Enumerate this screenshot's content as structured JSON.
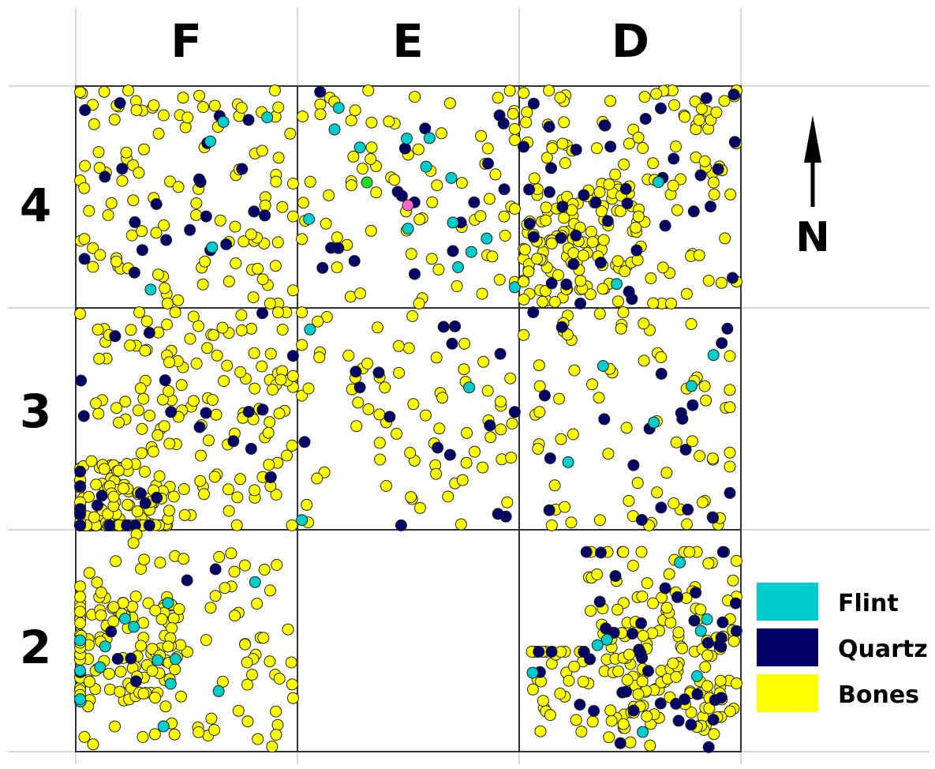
{
  "colors": {
    "flint": "#00cccc",
    "quartz": "#000066",
    "bones": "#ffff00",
    "green_find": "#22dd22",
    "pink_find": "#ff66cc",
    "grid_line": "#cccccc",
    "square_border": "#333333"
  },
  "grid": {
    "columns": [
      "F",
      "E",
      "D"
    ],
    "rows": [
      "4",
      "3",
      "2"
    ],
    "squares": [
      {
        "id": "F4",
        "bones": 110,
        "quartz": 22,
        "flint": 5
      },
      {
        "id": "E4",
        "bones": 75,
        "quartz": 18,
        "flint": 14
      },
      {
        "id": "D4",
        "bones": 200,
        "quartz": 40,
        "flint": 2
      },
      {
        "id": "F3",
        "bones": 270,
        "quartz": 30,
        "flint": 0
      },
      {
        "id": "E3",
        "bones": 70,
        "quartz": 16,
        "flint": 3
      },
      {
        "id": "D3",
        "bones": 70,
        "quartz": 20,
        "flint": 5
      },
      {
        "id": "F2",
        "bones": 185,
        "quartz": 8,
        "flint": 15
      },
      {
        "id": "E2",
        "bones": 0,
        "quartz": 0,
        "flint": 0
      },
      {
        "id": "D2",
        "bones": 190,
        "quartz": 45,
        "flint": 8
      }
    ]
  },
  "north": {
    "label": "N",
    "icon": "north-arrow-icon"
  },
  "legend": {
    "items": [
      {
        "label": "Flint",
        "color": "#00cccc"
      },
      {
        "label": "Quartz",
        "color": "#000066"
      },
      {
        "label": "Bones",
        "color": "#ffff00"
      }
    ]
  }
}
